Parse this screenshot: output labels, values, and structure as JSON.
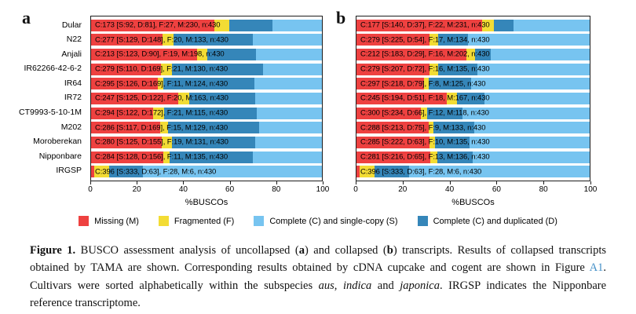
{
  "palette": {
    "missing": "#EE4140",
    "fragmented": "#F3DC34",
    "complete_single": "#77C4F0",
    "complete_dup": "#3586B9",
    "link": "#4490C8",
    "frame": "#1c1c1c"
  },
  "legend": [
    {
      "label": "Missing (M)",
      "color_key": "missing"
    },
    {
      "label": "Fragmented (F)",
      "color_key": "fragmented"
    },
    {
      "label": "Complete (C) and single-copy (S)",
      "color_key": "complete_single"
    },
    {
      "label": "Complete (C) and duplicated (D)",
      "color_key": "complete_dup"
    }
  ],
  "chart_data": [
    {
      "type": "bar",
      "stacked": true,
      "orientation": "horizontal",
      "panel": "a",
      "show_category_labels": true,
      "categories": [
        "Dular",
        "N22",
        "Anjali",
        "IR62266-42-6-2",
        "IR64",
        "IR72",
        "CT9993-5-10-1M",
        "M202",
        "Moroberekan",
        "Nipponbare",
        "IRGSP"
      ],
      "total_per_bar": 430,
      "series": [
        {
          "name": "Missing (M)",
          "color_key": "missing",
          "values": [
            230,
            133,
            198,
            130,
            124,
            163,
            115,
            129,
            131,
            135,
            6
          ]
        },
        {
          "name": "Fragmented (F)",
          "color_key": "fragmented",
          "values": [
            27,
            20,
            19,
            21,
            11,
            20,
            21,
            15,
            19,
            11,
            28
          ]
        },
        {
          "name": "Complete (C) and duplicated (D)",
          "color_key": "complete_dup",
          "values": [
            81,
            148,
            90,
            169,
            169,
            122,
            172,
            169,
            155,
            156,
            63
          ]
        },
        {
          "name": "Complete (C) and single-copy (S)",
          "color_key": "complete_single",
          "values": [
            92,
            129,
            123,
            110,
            126,
            125,
            122,
            117,
            125,
            128,
            333
          ]
        }
      ],
      "bar_labels": [
        "C:173 [S:92, D:81], F:27, M:230, n:430",
        "C:277 [S:129, D:148], F:20, M:133, n:430",
        "C:213 [S:123, D:90], F:19, M:198, n:430",
        "C:279 [S:110, D:169], F:21, M:130, n:430",
        "C:295 [S:126, D:169], F:11, M:124, n:430",
        "C:247 [S:125, D:122], F:20, M:163, n:430",
        "C:294 [S:122, D:172], F:21, M:115, n:430",
        "C:286 [S:117, D:169], F:15, M:129, n:430",
        "C:280 [S:125, D:155], F:19, M:131, n:430",
        "C:284 [S:128, D:156], F:11, M:135, n:430",
        "C:396 [S:333, D:63], F:28, M:6, n:430"
      ],
      "xlabel": "%BUSCOs",
      "xlim": [
        0,
        100
      ],
      "xticks": [
        0,
        20,
        40,
        60,
        80,
        100
      ]
    },
    {
      "type": "bar",
      "stacked": true,
      "orientation": "horizontal",
      "panel": "b",
      "show_category_labels": false,
      "categories": [
        "Dular",
        "N22",
        "Anjali",
        "IR62266-42-6-2",
        "IR64",
        "IR72",
        "CT9993-5-10-1M",
        "M202",
        "Moroberekan",
        "Nipponbare",
        "IRGSP"
      ],
      "total_per_bar": 430,
      "series": [
        {
          "name": "Missing (M)",
          "color_key": "missing",
          "values": [
            231,
            134,
            202,
            135,
            125,
            167,
            118,
            133,
            135,
            136,
            6
          ]
        },
        {
          "name": "Fragmented (F)",
          "color_key": "fragmented",
          "values": [
            22,
            17,
            16,
            16,
            8,
            18,
            12,
            9,
            10,
            13,
            28
          ]
        },
        {
          "name": "Complete (C) and duplicated (D)",
          "color_key": "complete_dup",
          "values": [
            37,
            54,
            29,
            72,
            79,
            51,
            66,
            75,
            63,
            65,
            63
          ]
        },
        {
          "name": "Complete (C) and single-copy (S)",
          "color_key": "complete_single",
          "values": [
            140,
            225,
            183,
            207,
            218,
            194,
            234,
            213,
            222,
            216,
            333
          ]
        }
      ],
      "bar_labels": [
        "C:177 [S:140, D:37], F:22, M:231, n:430",
        "C:279 [S:225, D:54], F:17, M:134, n:430",
        "C:212 [S:183, D:29], F:16, M:202, n:430",
        "C:279 [S:207, D:72], F:16, M:135, n:430",
        "C:297 [S:218, D:79], F:8, M:125, n:430",
        "C:245 [S:194, D:51], F:18, M:167, n:430",
        "C:300 [S:234, D:66], F:12, M:118, n:430",
        "C:288 [S:213, D:75], F:9, M:133, n:430",
        "C:285 [S:222, D:63], F:10, M:135, n:430",
        "C:281 [S:216, D:65], F:13, M:136, n:430",
        "C:396 [S:333, D:63], F:28, M:6, n:430"
      ],
      "xlabel": "%BUSCOs",
      "xlim": [
        0,
        100
      ],
      "xticks": [
        0,
        20,
        40,
        60,
        80,
        100
      ]
    }
  ],
  "caption": {
    "segments": [
      {
        "text": "Figure 1.",
        "style": "bold"
      },
      {
        "text": " BUSCO assessment analysis of uncollapsed (",
        "style": "normal"
      },
      {
        "text": "a",
        "style": "bold"
      },
      {
        "text": ") and collapsed (",
        "style": "normal"
      },
      {
        "text": "b",
        "style": "bold"
      },
      {
        "text": ") transcripts. Results of collapsed transcripts obtained by TAMA are shown. Corresponding results obtained by cDNA cupcake and cogent are shown in Figure ",
        "style": "normal"
      },
      {
        "text": "A1",
        "style": "link"
      },
      {
        "text": ". Cultivars were sorted alphabetically within the subspecies ",
        "style": "normal"
      },
      {
        "text": "aus",
        "style": "italic"
      },
      {
        "text": ", ",
        "style": "normal"
      },
      {
        "text": "indica",
        "style": "italic"
      },
      {
        "text": " and ",
        "style": "normal"
      },
      {
        "text": "japonica",
        "style": "italic"
      },
      {
        "text": ". IRGSP indicates the Nipponbare reference transcriptome.",
        "style": "normal"
      }
    ]
  }
}
